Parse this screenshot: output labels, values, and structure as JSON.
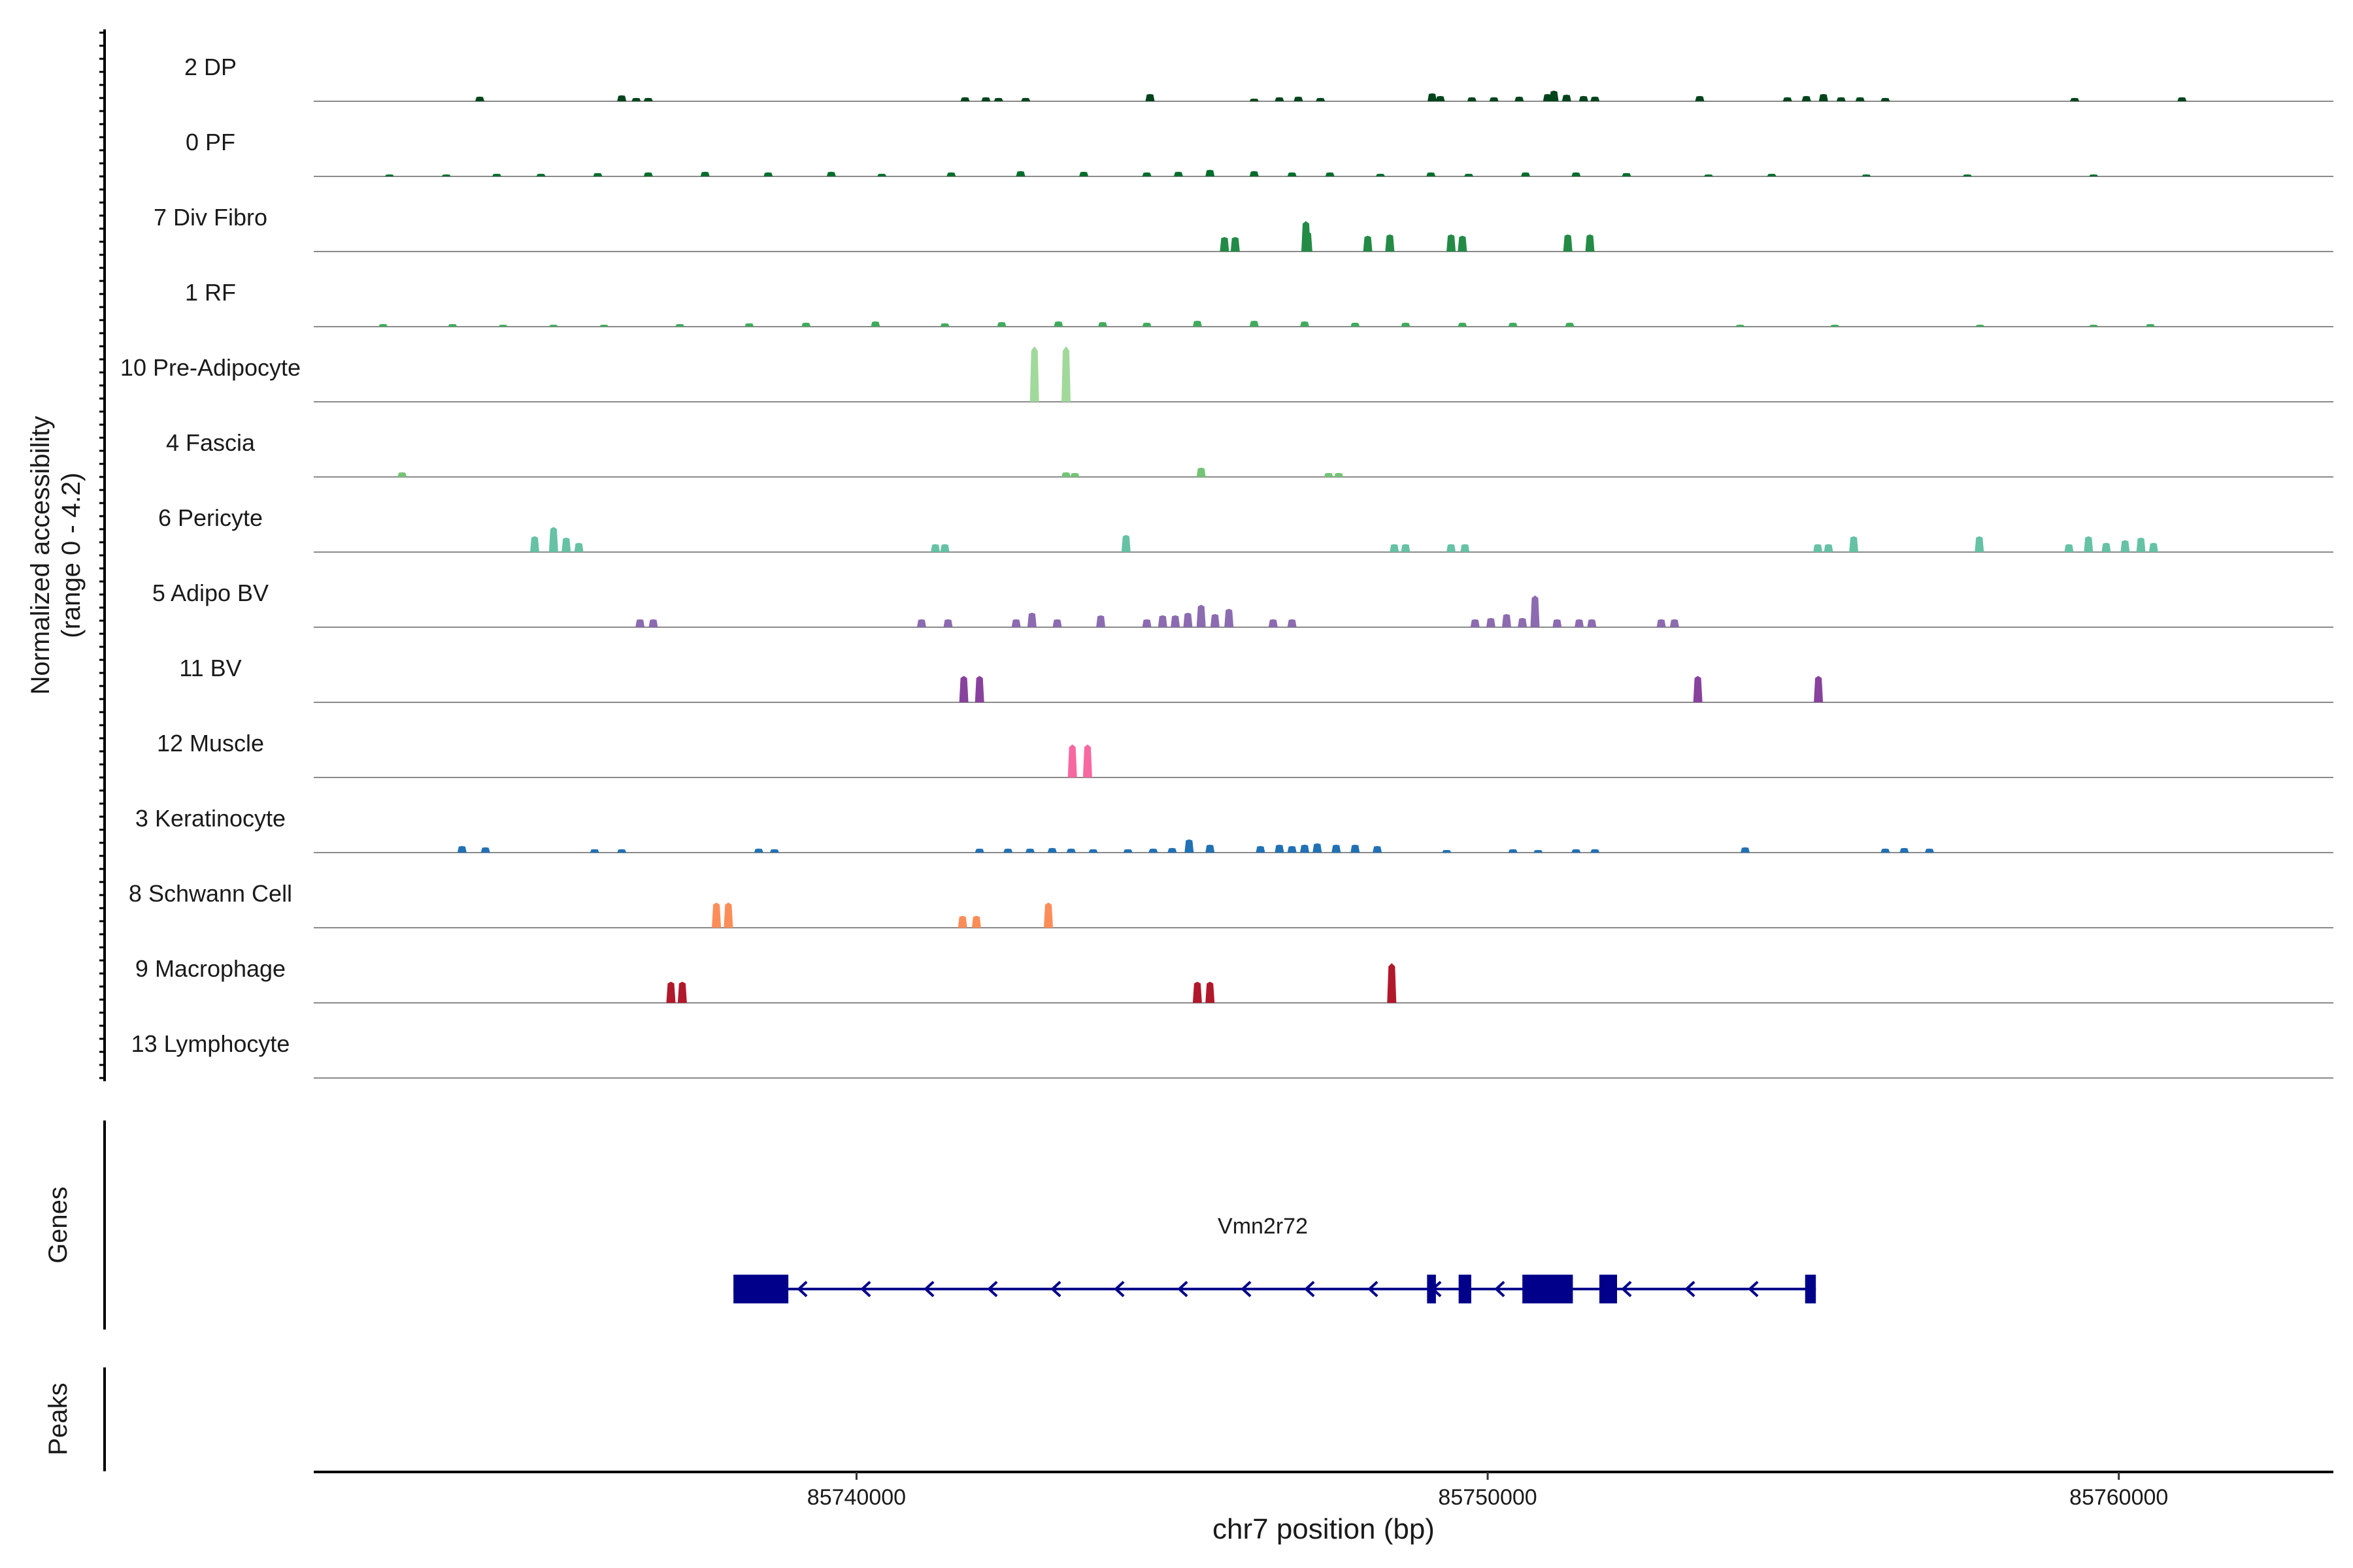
{
  "chart_data": {
    "type": "coverage",
    "ylabel_line1": "Normalized accessibility",
    "ylabel_line2": "(range 0 - 4.2)",
    "yrange": [
      0,
      4.2
    ],
    "xlabel": "chr7 position (bp)",
    "xlim": [
      85731400,
      85763400
    ],
    "xticks": [
      85740000,
      85750000,
      85760000
    ],
    "xtick_labels": [
      "85740000",
      "85750000",
      "85760000"
    ],
    "genes_label": "Genes",
    "peaks_label": "Peaks",
    "tracks": [
      {
        "name": "2 DP",
        "color": "#00441b",
        "peaks": [
          [
            85734030,
            0.35
          ],
          [
            85736280,
            0.45
          ],
          [
            85736510,
            0.25
          ],
          [
            85736700,
            0.25
          ],
          [
            85741720,
            0.3
          ],
          [
            85742050,
            0.3
          ],
          [
            85742250,
            0.25
          ],
          [
            85742680,
            0.25
          ],
          [
            85744650,
            0.55
          ],
          [
            85746300,
            0.2
          ],
          [
            85746700,
            0.3
          ],
          [
            85747000,
            0.35
          ],
          [
            85747350,
            0.25
          ],
          [
            85749120,
            0.6
          ],
          [
            85749250,
            0.4
          ],
          [
            85749750,
            0.3
          ],
          [
            85750100,
            0.3
          ],
          [
            85750500,
            0.35
          ],
          [
            85750950,
            0.55
          ],
          [
            85751050,
            0.8
          ],
          [
            85751250,
            0.5
          ],
          [
            85751520,
            0.4
          ],
          [
            85751700,
            0.35
          ],
          [
            85753360,
            0.4
          ],
          [
            85754750,
            0.3
          ],
          [
            85755050,
            0.4
          ],
          [
            85755320,
            0.55
          ],
          [
            85755600,
            0.3
          ],
          [
            85755900,
            0.3
          ],
          [
            85756300,
            0.25
          ],
          [
            85759300,
            0.25
          ],
          [
            85761000,
            0.3
          ]
        ]
      },
      {
        "name": "0 PF",
        "color": "#006d2c",
        "peaks": [
          [
            85732600,
            0.15
          ],
          [
            85733500,
            0.15
          ],
          [
            85734300,
            0.2
          ],
          [
            85735000,
            0.2
          ],
          [
            85735900,
            0.25
          ],
          [
            85736700,
            0.3
          ],
          [
            85737600,
            0.35
          ],
          [
            85738600,
            0.3
          ],
          [
            85739600,
            0.35
          ],
          [
            85740400,
            0.2
          ],
          [
            85741500,
            0.3
          ],
          [
            85742600,
            0.4
          ],
          [
            85743600,
            0.35
          ],
          [
            85744600,
            0.3
          ],
          [
            85745100,
            0.35
          ],
          [
            85745600,
            0.5
          ],
          [
            85746300,
            0.4
          ],
          [
            85746900,
            0.3
          ],
          [
            85747500,
            0.3
          ],
          [
            85748300,
            0.2
          ],
          [
            85749100,
            0.3
          ],
          [
            85749700,
            0.2
          ],
          [
            85750600,
            0.3
          ],
          [
            85751400,
            0.3
          ],
          [
            85752200,
            0.25
          ],
          [
            85753500,
            0.15
          ],
          [
            85754500,
            0.2
          ],
          [
            85756000,
            0.15
          ],
          [
            85757600,
            0.15
          ],
          [
            85759600,
            0.15
          ]
        ]
      },
      {
        "name": "7 Div Fibro",
        "color": "#238b45",
        "peaks": [
          [
            85745830,
            1.1
          ],
          [
            85746000,
            1.1
          ],
          [
            85747120,
            2.3
          ],
          [
            85747150,
            1.5
          ],
          [
            85748100,
            1.2
          ],
          [
            85748450,
            1.3
          ],
          [
            85749420,
            1.3
          ],
          [
            85749600,
            1.2
          ],
          [
            85751270,
            1.3
          ],
          [
            85751620,
            1.3
          ]
        ]
      },
      {
        "name": "1 RF",
        "color": "#41ab5d",
        "peaks": [
          [
            85732500,
            0.2
          ],
          [
            85733600,
            0.2
          ],
          [
            85734400,
            0.15
          ],
          [
            85735200,
            0.15
          ],
          [
            85736000,
            0.15
          ],
          [
            85737200,
            0.2
          ],
          [
            85738300,
            0.25
          ],
          [
            85739200,
            0.3
          ],
          [
            85740300,
            0.4
          ],
          [
            85741400,
            0.25
          ],
          [
            85742300,
            0.35
          ],
          [
            85743200,
            0.4
          ],
          [
            85743900,
            0.35
          ],
          [
            85744600,
            0.3
          ],
          [
            85745400,
            0.45
          ],
          [
            85746300,
            0.45
          ],
          [
            85747100,
            0.4
          ],
          [
            85747900,
            0.3
          ],
          [
            85748700,
            0.3
          ],
          [
            85749600,
            0.3
          ],
          [
            85750400,
            0.3
          ],
          [
            85751300,
            0.3
          ],
          [
            85754000,
            0.15
          ],
          [
            85755500,
            0.15
          ],
          [
            85757800,
            0.15
          ],
          [
            85759600,
            0.15
          ],
          [
            85760500,
            0.2
          ]
        ]
      },
      {
        "name": "10 Pre-Adipocyte",
        "color": "#a1d99b",
        "peaks": [
          [
            85742820,
            4.2
          ],
          [
            85743320,
            4.2
          ]
        ]
      },
      {
        "name": "4 Fascia",
        "color": "#74c476",
        "peaks": [
          [
            85732800,
            0.35
          ],
          [
            85743320,
            0.35
          ],
          [
            85743460,
            0.3
          ],
          [
            85745460,
            0.7
          ],
          [
            85747480,
            0.3
          ],
          [
            85747640,
            0.3
          ]
        ]
      },
      {
        "name": "6 Pericyte",
        "color": "#66c2a4",
        "peaks": [
          [
            85734900,
            1.2
          ],
          [
            85735200,
            1.9
          ],
          [
            85735400,
            1.1
          ],
          [
            85735600,
            0.7
          ],
          [
            85741250,
            0.6
          ],
          [
            85741400,
            0.6
          ],
          [
            85744270,
            1.3
          ],
          [
            85748520,
            0.6
          ],
          [
            85748700,
            0.6
          ],
          [
            85749420,
            0.6
          ],
          [
            85749640,
            0.6
          ],
          [
            85755230,
            0.6
          ],
          [
            85755400,
            0.6
          ],
          [
            85755800,
            1.2
          ],
          [
            85757790,
            1.2
          ],
          [
            85759210,
            0.6
          ],
          [
            85759520,
            1.2
          ],
          [
            85759800,
            0.7
          ],
          [
            85760100,
            0.9
          ],
          [
            85760350,
            1.1
          ],
          [
            85760550,
            0.7
          ]
        ]
      },
      {
        "name": "5 Adipo BV",
        "color": "#8c6bb1",
        "peaks": [
          [
            85736570,
            0.6
          ],
          [
            85736780,
            0.6
          ],
          [
            85741030,
            0.6
          ],
          [
            85741450,
            0.6
          ],
          [
            85742530,
            0.6
          ],
          [
            85742780,
            1.1
          ],
          [
            85743180,
            0.6
          ],
          [
            85743870,
            0.9
          ],
          [
            85744600,
            0.6
          ],
          [
            85744850,
            0.9
          ],
          [
            85745050,
            0.9
          ],
          [
            85745250,
            1.1
          ],
          [
            85745460,
            1.7
          ],
          [
            85745680,
            1.0
          ],
          [
            85745900,
            1.4
          ],
          [
            85746600,
            0.6
          ],
          [
            85746900,
            0.6
          ],
          [
            85749800,
            0.6
          ],
          [
            85750050,
            0.7
          ],
          [
            85750300,
            1.0
          ],
          [
            85750550,
            0.7
          ],
          [
            85750750,
            2.4
          ],
          [
            85751100,
            0.6
          ],
          [
            85751450,
            0.6
          ],
          [
            85751650,
            0.6
          ],
          [
            85752750,
            0.6
          ],
          [
            85752960,
            0.6
          ]
        ]
      },
      {
        "name": "11 BV",
        "color": "#88419d",
        "peaks": [
          [
            85741700,
            2.0
          ],
          [
            85741950,
            2.0
          ],
          [
            85753330,
            2.0
          ],
          [
            85755240,
            2.0
          ]
        ]
      },
      {
        "name": "12 Muscle",
        "color": "#f768a1",
        "peaks": [
          [
            85743420,
            2.5
          ],
          [
            85743660,
            2.5
          ]
        ]
      },
      {
        "name": "3 Keratinocyte",
        "color": "#2171b5",
        "peaks": [
          [
            85733750,
            0.5
          ],
          [
            85734120,
            0.4
          ],
          [
            85735850,
            0.25
          ],
          [
            85736280,
            0.25
          ],
          [
            85738450,
            0.3
          ],
          [
            85738700,
            0.25
          ],
          [
            85741950,
            0.3
          ],
          [
            85742400,
            0.3
          ],
          [
            85742750,
            0.3
          ],
          [
            85743100,
            0.35
          ],
          [
            85743400,
            0.3
          ],
          [
            85743750,
            0.25
          ],
          [
            85744300,
            0.25
          ],
          [
            85744700,
            0.3
          ],
          [
            85745000,
            0.35
          ],
          [
            85745270,
            1.0
          ],
          [
            85745600,
            0.6
          ],
          [
            85746400,
            0.5
          ],
          [
            85746700,
            0.6
          ],
          [
            85746900,
            0.5
          ],
          [
            85747100,
            0.6
          ],
          [
            85747300,
            0.7
          ],
          [
            85747600,
            0.6
          ],
          [
            85747900,
            0.6
          ],
          [
            85748250,
            0.5
          ],
          [
            85749350,
            0.2
          ],
          [
            85750400,
            0.25
          ],
          [
            85750800,
            0.2
          ],
          [
            85751400,
            0.25
          ],
          [
            85751700,
            0.25
          ],
          [
            85754080,
            0.4
          ],
          [
            85756300,
            0.3
          ],
          [
            85756600,
            0.35
          ],
          [
            85757000,
            0.3
          ]
        ]
      },
      {
        "name": "8 Schwann Cell",
        "color": "#fc8d59",
        "peaks": [
          [
            85737780,
            1.9
          ],
          [
            85737970,
            1.9
          ],
          [
            85741680,
            0.9
          ],
          [
            85741900,
            0.9
          ],
          [
            85743040,
            1.9
          ]
        ]
      },
      {
        "name": "9 Macrophage",
        "color": "#b2182b",
        "peaks": [
          [
            85737060,
            1.6
          ],
          [
            85737240,
            1.6
          ],
          [
            85745400,
            1.6
          ],
          [
            85745600,
            1.6
          ],
          [
            85748480,
            3.0
          ]
        ]
      },
      {
        "name": "13 Lymphocyte",
        "color": "#2171b5",
        "peaks": []
      }
    ],
    "gene": {
      "name": "Vmn2r72",
      "color": "#00008b",
      "start": 85738050,
      "end": 85755200,
      "strand": "-",
      "exons": [
        [
          85738050,
          85738920
        ],
        [
          85749040,
          85749180
        ],
        [
          85749540,
          85749740
        ],
        [
          85750550,
          85751350
        ],
        [
          85751770,
          85752050
        ],
        [
          85755030,
          85755200
        ]
      ]
    }
  }
}
